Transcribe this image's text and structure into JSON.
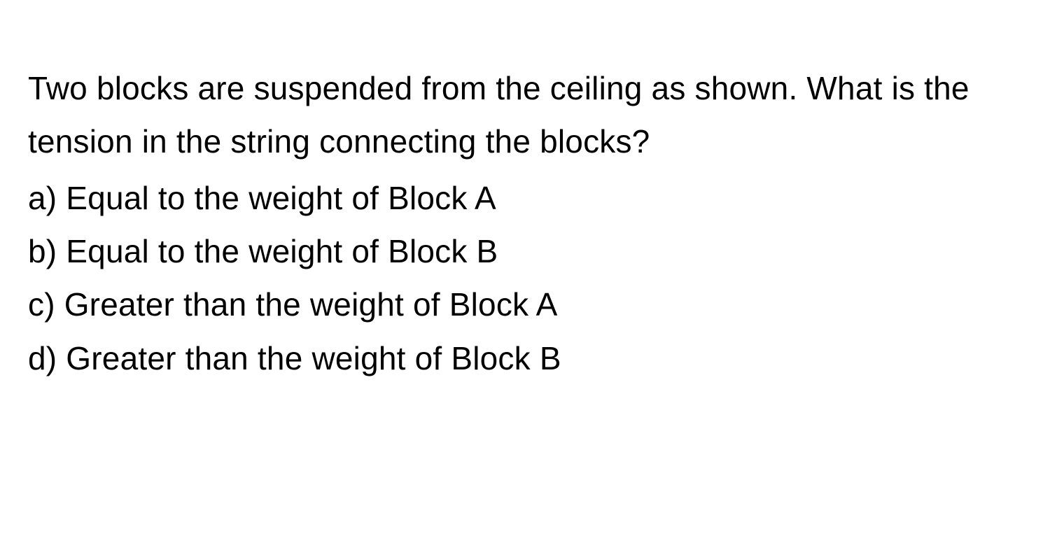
{
  "question": {
    "text": "Two blocks are suspended from the ceiling as shown. What is the tension in the string connecting the blocks?"
  },
  "options": [
    {
      "label": "a)",
      "text": "Equal to the weight of Block A"
    },
    {
      "label": "b)",
      "text": "Equal to the weight of Block B"
    },
    {
      "label": "c)",
      "text": "Greater than the weight of Block A"
    },
    {
      "label": "d)",
      "text": "Greater than the weight of Block B"
    }
  ],
  "style": {
    "background_color": "#ffffff",
    "text_color": "#000000",
    "font_size_pt": 34,
    "line_height": 1.66,
    "font_weight": 400,
    "font_family": "-apple-system"
  }
}
